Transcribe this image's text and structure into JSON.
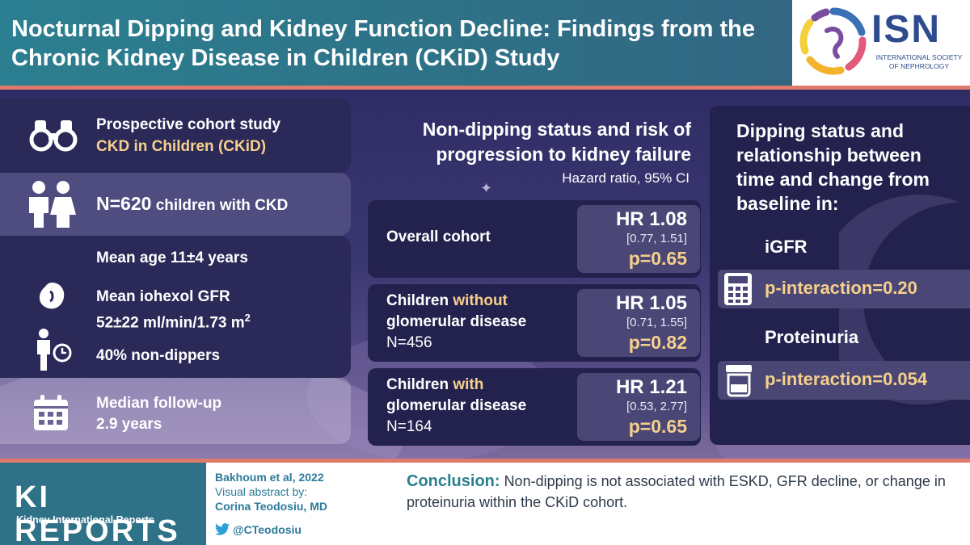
{
  "header": {
    "title": "Nocturnal Dipping and Kidney Function Decline: Findings from the Chronic Kidney Disease in Children (CKiD) Study",
    "logo": {
      "text": "ISN",
      "subtitle": "INTERNATIONAL SOCIETY OF NEPHROLOGY"
    }
  },
  "left": {
    "study_type": "Prospective cohort study",
    "study_name": "CKD in Children (CKiD)",
    "n_label": "N=620",
    "n_desc": "children with CKD",
    "age": "Mean age 11±4 years",
    "gfr_line1": "Mean iohexol GFR",
    "gfr_line2": "52±22 ml/min/1.73 m",
    "gfr_sup": "2",
    "nondippers": "40% non-dippers",
    "followup_line1": "Median follow-up",
    "followup_line2": "2.9 years"
  },
  "middle": {
    "title_line1": "Non-dipping status and risk of",
    "title_line2": "progression to kidney failure",
    "subtitle": "Hazard ratio, 95% CI",
    "rows": [
      {
        "label": "Overall cohort",
        "hr": "HR 1.08",
        "ci": "[0.77, 1.51]",
        "p": "p=0.65"
      },
      {
        "label_pre": "Children ",
        "label_em": "without",
        "label_line2": "glomerular disease",
        "n": "N=456",
        "hr": "HR 1.05",
        "ci": "[0.71, 1.55]",
        "p": "p=0.82"
      },
      {
        "label_pre": "Children ",
        "label_em": "with",
        "label_line2": "glomerular disease",
        "n": "N=164",
        "hr": "HR 1.21",
        "ci": "[0.53, 2.77]",
        "p": "p=0.65"
      }
    ]
  },
  "right": {
    "title_line1": "Dipping status and",
    "title_line2": "relationship between",
    "title_line3": "time and change from",
    "title_line4": "baseline in:",
    "igfr_label": "iGFR",
    "igfr_value": "p-interaction=0.20",
    "prot_label": "Proteinuria",
    "prot_value": "p-interaction=0.054"
  },
  "footer": {
    "journal": "KI REPORTS",
    "journal_sub": "Kidney International Reports",
    "citation": "Bakhoum et al, 2022",
    "abstract_by": "Visual abstract by:",
    "author": "Corina Teodosiu, MD",
    "twitter": "@CTeodosiu",
    "conclusion_label": "Conclusion:",
    "conclusion_text": "Non-dipping is not associated with ESKD, GFR decline, or change in proteinuria within the CKiD cohort."
  },
  "colors": {
    "header": "#2b7f90",
    "accent": "#e07a6c",
    "gold": "#f6d08a",
    "panel": "#23214e",
    "hr_box": "#4a4776"
  }
}
